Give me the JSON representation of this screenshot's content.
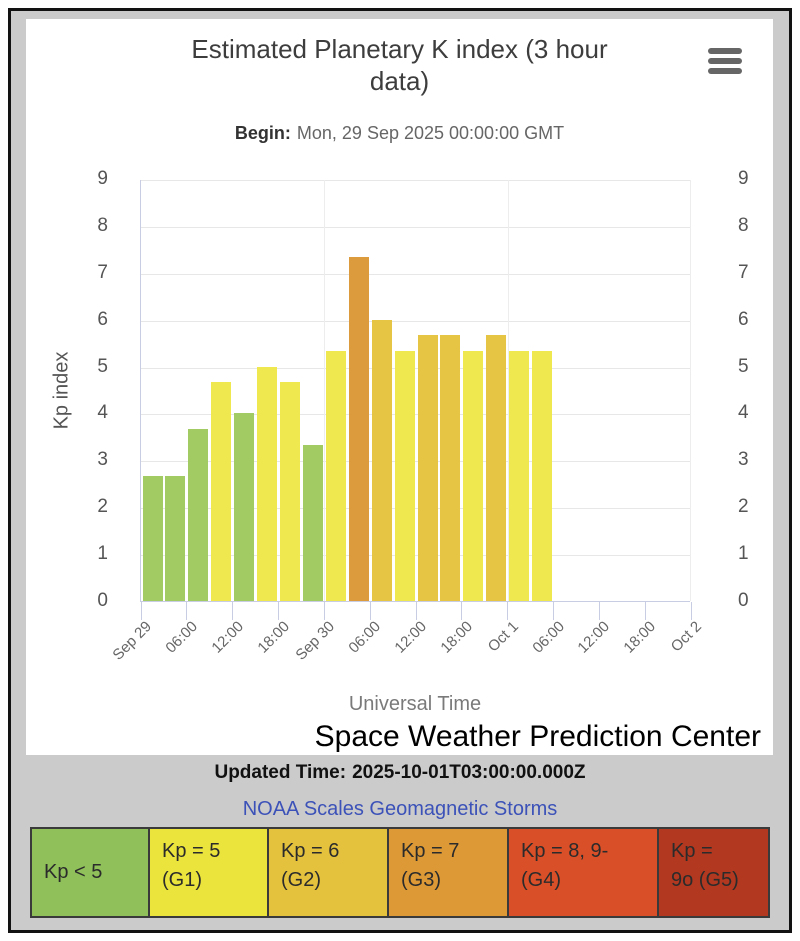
{
  "header": {
    "title": "Estimated Planetary K index (3 hour data)",
    "subtitle_label": "Begin:",
    "subtitle_value": "Mon, 29 Sep 2025 00:00:00 GMT"
  },
  "chart_data": {
    "type": "bar",
    "title": "Estimated Planetary K index (3 hour data)",
    "ylabel": "Kp index",
    "xlabel": "Universal Time",
    "ylim": [
      0,
      9
    ],
    "yticks": [
      0,
      1,
      2,
      3,
      4,
      5,
      6,
      7,
      8,
      9
    ],
    "x_tick_labels": [
      "Sep 29",
      "06:00",
      "12:00",
      "18:00",
      "Sep 30",
      "06:00",
      "12:00",
      "18:00",
      "Oct 1",
      "06:00",
      "12:00",
      "18:00",
      "Oct 2"
    ],
    "x_total_slots": 24,
    "grid": true,
    "bars": [
      {
        "time": "Sep 29 00:00",
        "value": 2.67,
        "level": "green"
      },
      {
        "time": "Sep 29 03:00",
        "value": 2.67,
        "level": "green"
      },
      {
        "time": "Sep 29 06:00",
        "value": 3.67,
        "level": "green"
      },
      {
        "time": "Sep 29 09:00",
        "value": 4.67,
        "level": "yellow"
      },
      {
        "time": "Sep 29 12:00",
        "value": 4.0,
        "level": "green"
      },
      {
        "time": "Sep 29 15:00",
        "value": 5.0,
        "level": "yellow"
      },
      {
        "time": "Sep 29 18:00",
        "value": 4.67,
        "level": "yellow"
      },
      {
        "time": "Sep 29 21:00",
        "value": 3.33,
        "level": "green"
      },
      {
        "time": "Sep 30 00:00",
        "value": 5.33,
        "level": "yellow"
      },
      {
        "time": "Sep 30 03:00",
        "value": 7.33,
        "level": "orange"
      },
      {
        "time": "Sep 30 06:00",
        "value": 6.0,
        "level": "gold"
      },
      {
        "time": "Sep 30 09:00",
        "value": 5.33,
        "level": "yellow"
      },
      {
        "time": "Sep 30 12:00",
        "value": 5.67,
        "level": "gold"
      },
      {
        "time": "Sep 30 15:00",
        "value": 5.67,
        "level": "gold"
      },
      {
        "time": "Sep 30 18:00",
        "value": 5.33,
        "level": "yellow"
      },
      {
        "time": "Sep 30 21:00",
        "value": 5.67,
        "level": "gold"
      },
      {
        "time": "Oct 1 00:00",
        "value": 5.33,
        "level": "yellow"
      },
      {
        "time": "Oct 1 03:00",
        "value": 5.33,
        "level": "yellow"
      }
    ],
    "colors": {
      "green": "#A3CB63",
      "yellow": "#EFE84E",
      "gold": "#E6C444",
      "orange": "#DC9B3D"
    }
  },
  "footer": {
    "credit": "Space Weather Prediction Center",
    "updated_label": "Updated Time:",
    "updated_value": "2025-10-01T03:00:00.000Z",
    "link": "NOAA Scales Geomagnetic Storms"
  },
  "legend": {
    "cells": [
      {
        "line1": "Kp < 5",
        "line2": "",
        "color": "#8FC05A"
      },
      {
        "line1": "Kp = 5",
        "line2": "(G1)",
        "color": "#EBE43C"
      },
      {
        "line1": "Kp = 6",
        "line2": "(G2)",
        "color": "#E4C23E"
      },
      {
        "line1": "Kp = 7",
        "line2": "(G3)",
        "color": "#DE9937"
      },
      {
        "line1": "Kp = 8, 9-",
        "line2": "(G4)",
        "color": "#D94F28"
      },
      {
        "line1": "Kp =",
        "line2": "9o (G5)",
        "color": "#B23820"
      }
    ]
  }
}
